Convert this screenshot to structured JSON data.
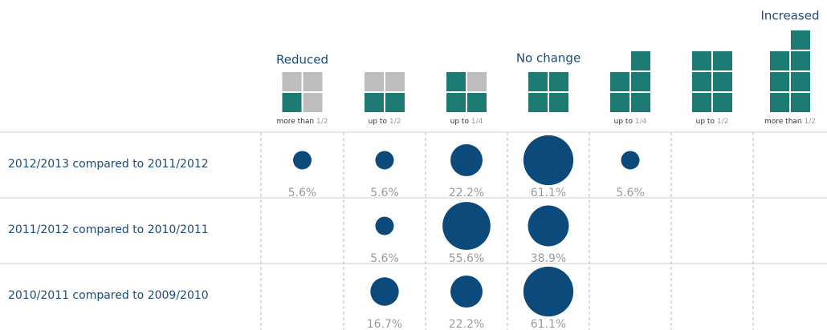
{
  "chart_data": {
    "type": "bubble",
    "groups": [
      "Reduced",
      "No change",
      "Increased"
    ],
    "categories": [
      {
        "text": "more than",
        "fraction": "1/2"
      },
      {
        "text": "up to",
        "fraction": "1/2"
      },
      {
        "text": "up to",
        "fraction": "1/4"
      },
      null,
      {
        "text": "up to",
        "fraction": "1/4"
      },
      {
        "text": "up to",
        "fraction": "1/2"
      },
      {
        "text": "more than",
        "fraction": "1/2"
      }
    ],
    "color": "#0c4a7b",
    "series": [
      {
        "name": "2012/2013 compared to 2011/2012",
        "values": [
          5.6,
          5.6,
          22.2,
          61.1,
          5.6,
          null,
          null
        ],
        "value_labels": [
          "5.6%",
          "5.6%",
          "22.2%",
          "61.1%",
          "5.6%",
          null,
          null
        ]
      },
      {
        "name": "2011/2012 compared to 2010/2011",
        "values": [
          null,
          5.6,
          55.6,
          38.9,
          null,
          null,
          null
        ],
        "value_labels": [
          null,
          "5.6%",
          "55.6%",
          "38.9%",
          null,
          null,
          null
        ]
      },
      {
        "name": "2010/2011 compared to 2009/2010",
        "values": [
          null,
          16.7,
          22.2,
          61.1,
          null,
          null,
          null
        ],
        "value_labels": [
          null,
          "16.7%",
          "22.2%",
          "61.1%",
          null,
          null,
          null
        ]
      }
    ]
  }
}
